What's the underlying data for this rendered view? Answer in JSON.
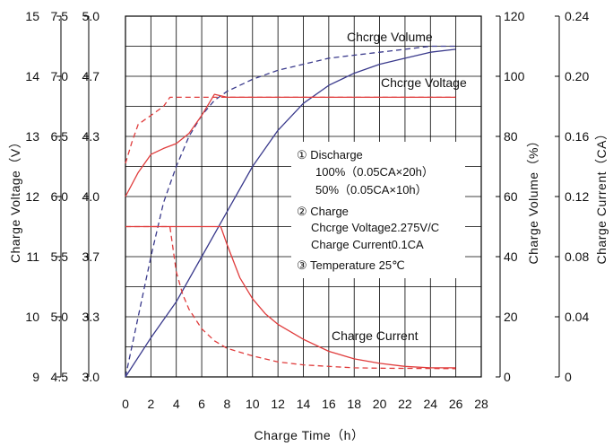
{
  "chart_data": {
    "type": "line",
    "xlabel": "Charge Time（h）",
    "x_ticks": [
      "0",
      "2",
      "4",
      "6",
      "8",
      "10",
      "12",
      "14",
      "16",
      "18",
      "20",
      "22",
      "24",
      "26",
      "28"
    ],
    "x_range": [
      0,
      28
    ],
    "left_axes": [
      {
        "title": "Charge Voltage（V）",
        "ticks": [
          "15",
          "14",
          "13",
          "12",
          "11",
          "10",
          "9"
        ],
        "range": [
          9,
          15
        ]
      },
      {
        "title": "",
        "ticks": [
          "7.5",
          "7.0",
          "6.5",
          "6.0",
          "5.5",
          "5.0",
          "4.5"
        ],
        "range": [
          4.5,
          7.5
        ]
      },
      {
        "title": "",
        "ticks": [
          "5.0",
          "4.7",
          "4.3",
          "4.0",
          "3.7",
          "3.3",
          "3.0"
        ],
        "range": [
          3.0,
          5.0
        ]
      }
    ],
    "right_axes": [
      {
        "title": "Charge Volume（%）",
        "ticks": [
          "120",
          "100",
          "80",
          "60",
          "40",
          "20",
          "0"
        ],
        "range": [
          0,
          120
        ]
      },
      {
        "title": "Charge Current（CA）",
        "ticks": [
          "0.24",
          "0.20",
          "0.16",
          "0.12",
          "0.08",
          "0.04",
          "0"
        ],
        "range": [
          0,
          0.24
        ]
      }
    ],
    "curve_labels": {
      "volume": "Chcrge Volume",
      "voltage": "Chcrge Voltage",
      "current": "Charge Current"
    },
    "legend": {
      "l1": "① Discharge",
      "l2": "100%（0.05CA×20h）",
      "l3": "50%（0.05CA×10h）",
      "l4": "② Charge",
      "l5": "Chcrge Voltage2.275V/C",
      "l6": "Charge Current0.1CA",
      "l7": "③ Temperature 25℃"
    },
    "series": [
      {
        "id": "volume_100",
        "axis": "right_volume",
        "color": "#3a3a8c",
        "dash": false,
        "x": [
          0,
          2,
          4,
          6,
          8,
          10,
          12,
          14,
          16,
          18,
          20,
          22,
          24,
          26
        ],
        "y": [
          0,
          13,
          25,
          40,
          55,
          70,
          82,
          91,
          97,
          101,
          104,
          106,
          108,
          109
        ]
      },
      {
        "id": "volume_50",
        "axis": "right_volume",
        "color": "#3a3a8c",
        "dash": true,
        "x": [
          0,
          1,
          2,
          3,
          4,
          5,
          6,
          7,
          8,
          10,
          12,
          14,
          16,
          18,
          20,
          22,
          24,
          26
        ],
        "y": [
          0,
          20,
          40,
          58,
          70,
          80,
          87,
          92,
          95,
          99,
          102,
          104,
          106,
          107,
          108,
          109,
          110,
          110
        ]
      },
      {
        "id": "voltage_100",
        "axis": "left_voltage",
        "color": "#e03c3c",
        "dash": false,
        "x": [
          0,
          1,
          2,
          3,
          4,
          5,
          6,
          7,
          8,
          26
        ],
        "y": [
          12.0,
          12.4,
          12.7,
          12.8,
          12.88,
          13.05,
          13.35,
          13.7,
          13.65,
          13.65
        ]
      },
      {
        "id": "voltage_50",
        "axis": "left_voltage",
        "color": "#e03c3c",
        "dash": true,
        "x": [
          0,
          0.5,
          1,
          2,
          3,
          3.5,
          26
        ],
        "y": [
          12.55,
          12.9,
          13.2,
          13.35,
          13.5,
          13.65,
          13.65
        ]
      },
      {
        "id": "current_100",
        "axis": "right_current",
        "color": "#e03c3c",
        "dash": false,
        "x": [
          0,
          7.5,
          8,
          9,
          10,
          11,
          12,
          14,
          16,
          18,
          20,
          22,
          24,
          26
        ],
        "y": [
          0.1,
          0.1,
          0.088,
          0.066,
          0.052,
          0.042,
          0.035,
          0.025,
          0.017,
          0.012,
          0.009,
          0.007,
          0.006,
          0.006
        ]
      },
      {
        "id": "current_50",
        "axis": "right_current",
        "color": "#e03c3c",
        "dash": true,
        "x": [
          0,
          3.5,
          4,
          4.5,
          5,
          6,
          7,
          8,
          10,
          12,
          14,
          16,
          18,
          20,
          22,
          24,
          26
        ],
        "y": [
          0.1,
          0.1,
          0.07,
          0.055,
          0.045,
          0.032,
          0.024,
          0.019,
          0.014,
          0.01,
          0.008,
          0.007,
          0.006,
          0.0058,
          0.0057,
          0.0056,
          0.0055
        ]
      }
    ]
  }
}
